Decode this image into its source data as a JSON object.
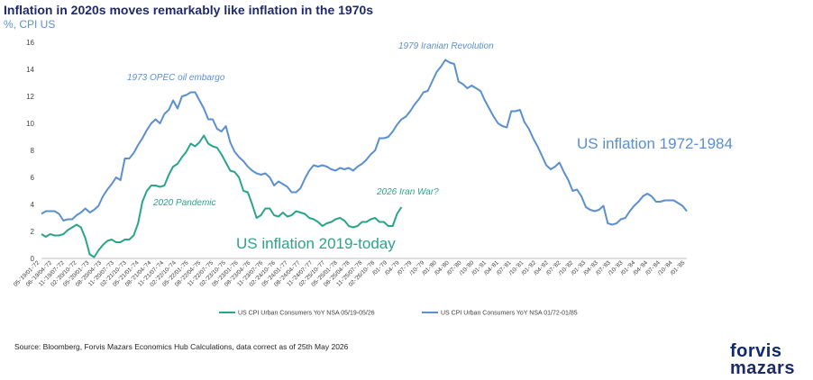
{
  "title": "Inflation in 2020s moves remarkably like inflation in the 1970s",
  "subtitle": "%, CPI US",
  "source": "Source: Bloomberg, Forvis Mazars Economics Hub Calculations, data correct as of 25th May 2026",
  "logo": {
    "line1": "forvis",
    "line2": "mazars"
  },
  "colors": {
    "series_1970s": "#5b8fce",
    "series_2020s": "#2aa58a",
    "title": "#1f2a6b",
    "axis": "#bfbfbf"
  },
  "chart_data": {
    "type": "line",
    "title": "Inflation in 2020s moves remarkably like inflation in the 1970s",
    "ylabel": "%, CPI US",
    "ylim": [
      0,
      16
    ],
    "yticks": [
      0,
      2,
      4,
      6,
      8,
      10,
      12,
      14,
      16
    ],
    "grid": false,
    "legend_position": "bottom",
    "x_tick_labels": [
      "05-'19/01-'72",
      "06-'19/04-'72",
      "11-'19/07-'72",
      "02-'20/10-'72",
      "05-'20/01-'73",
      "08-'20/04-'73",
      "11-'20/07-'73",
      "02-'21/10-'73",
      "05-'21/01-'74",
      "08-'21/04-'74",
      "11-'21/07-'74",
      "02-'22/10-'74",
      "05-'22/01-'75",
      "08-'22/04-'75",
      "11-'22/07-'75",
      "02-'23/10-'75",
      "05-'23/01-'76",
      "08-'23/04-'76",
      "11-'23/07-'76",
      "02-'24/10-'76",
      "05-'24/01-'77",
      "08-'24/04-'77",
      "11-'24/07-'77",
      "02-'25/10-'77",
      "05-'25/01-'78",
      "08-'25/04-'78",
      "11-'25/07-'78",
      "02-'26/10-'78",
      "/01-'79",
      "/04-'79",
      "/07-'79",
      "/10-'79",
      "/01-'80",
      "/04-'80",
      "/07-'80",
      "/10-'80",
      "/01-'81",
      "/04-'81",
      "/07-'81",
      "/10-'81",
      "/01-'82",
      "/04-'82",
      "/07-'82",
      "/10-'82",
      "/01-'83",
      "/04-'83",
      "/07-'83",
      "/10-'83",
      "/01-'84",
      "/04-'84",
      "/07-'84",
      "/10-'84",
      "/01-'85"
    ],
    "series": [
      {
        "name": "US CPI Urban Consumers YoY NSA  01/72-01/85",
        "start_index": 0,
        "values": [
          3.3,
          3.5,
          3.5,
          3.5,
          3.3,
          2.8,
          2.9,
          2.9,
          3.2,
          3.4,
          3.7,
          3.4,
          3.6,
          3.9,
          4.6,
          5.1,
          5.5,
          6.0,
          5.8,
          7.4,
          7.4,
          7.8,
          8.4,
          8.9,
          9.5,
          10.0,
          10.3,
          10.0,
          10.7,
          11.0,
          11.7,
          11.1,
          12.0,
          12.1,
          12.3,
          12.3,
          11.7,
          11.1,
          10.3,
          10.3,
          9.6,
          9.4,
          9.8,
          8.6,
          7.9,
          7.5,
          7.2,
          6.8,
          6.5,
          6.3,
          6.2,
          6.3,
          6.0,
          5.4,
          5.7,
          5.5,
          5.3,
          4.9,
          4.9,
          5.2,
          5.9,
          6.5,
          6.9,
          6.8,
          6.9,
          6.8,
          6.6,
          6.5,
          6.7,
          6.6,
          6.7,
          6.5,
          6.8,
          7.0,
          7.3,
          7.7,
          8.0,
          8.9,
          8.9,
          9.0,
          9.4,
          9.9,
          10.3,
          10.5,
          10.9,
          11.4,
          11.8,
          12.3,
          12.4,
          13.1,
          13.8,
          14.2,
          14.7,
          14.5,
          14.4,
          13.1,
          12.9,
          12.6,
          12.8,
          12.6,
          12.4,
          11.7,
          11.1,
          10.5,
          10.0,
          9.8,
          9.7,
          10.9,
          10.9,
          11.0,
          10.1,
          9.6,
          8.9,
          8.3,
          7.6,
          6.9,
          6.6,
          6.8,
          7.1,
          6.4,
          5.8,
          5.0,
          5.1,
          4.6,
          3.8,
          3.6,
          3.5,
          3.6,
          3.9,
          2.6,
          2.5,
          2.6,
          2.9,
          3.0,
          3.5,
          3.9,
          4.2,
          4.6,
          4.8,
          4.6,
          4.2,
          4.2,
          4.3,
          4.3,
          4.3,
          4.1,
          3.9,
          3.5
        ]
      },
      {
        "name": "US CPI Urban Consumers YoY NSA  05/19-05/26",
        "start_index": 0,
        "values": [
          1.8,
          1.6,
          1.8,
          1.7,
          1.7,
          1.8,
          2.1,
          2.3,
          2.5,
          2.3,
          1.5,
          0.3,
          0.1,
          0.6,
          1.0,
          1.3,
          1.4,
          1.2,
          1.2,
          1.4,
          1.4,
          1.7,
          2.6,
          4.2,
          5.0,
          5.4,
          5.4,
          5.3,
          5.4,
          6.2,
          6.8,
          7.0,
          7.5,
          7.9,
          8.5,
          8.3,
          8.6,
          9.1,
          8.5,
          8.3,
          8.2,
          7.7,
          7.1,
          6.5,
          6.4,
          6.0,
          5.0,
          4.9,
          4.0,
          3.0,
          3.2,
          3.7,
          3.7,
          3.2,
          3.1,
          3.4,
          3.1,
          3.2,
          3.5,
          3.4,
          3.3,
          3.0,
          2.9,
          2.7,
          2.4,
          2.6,
          2.7,
          2.9,
          3.0,
          2.8,
          2.4,
          2.3,
          2.4,
          2.7,
          2.7,
          2.9,
          3.0,
          2.7,
          2.7,
          2.4,
          2.4,
          3.3,
          3.8
        ]
      }
    ],
    "annotations": [
      {
        "text": "1973 OPEC oil embargo",
        "series": 0
      },
      {
        "text": "1979 Iranian Revolution",
        "series": 0
      },
      {
        "text": "US inflation 1972-1984",
        "series": 0
      },
      {
        "text": "2020 Pandemic",
        "series": 1
      },
      {
        "text": "2026 Iran War?",
        "series": 1
      },
      {
        "text": "US inflation 2019-today",
        "series": 1
      }
    ]
  }
}
